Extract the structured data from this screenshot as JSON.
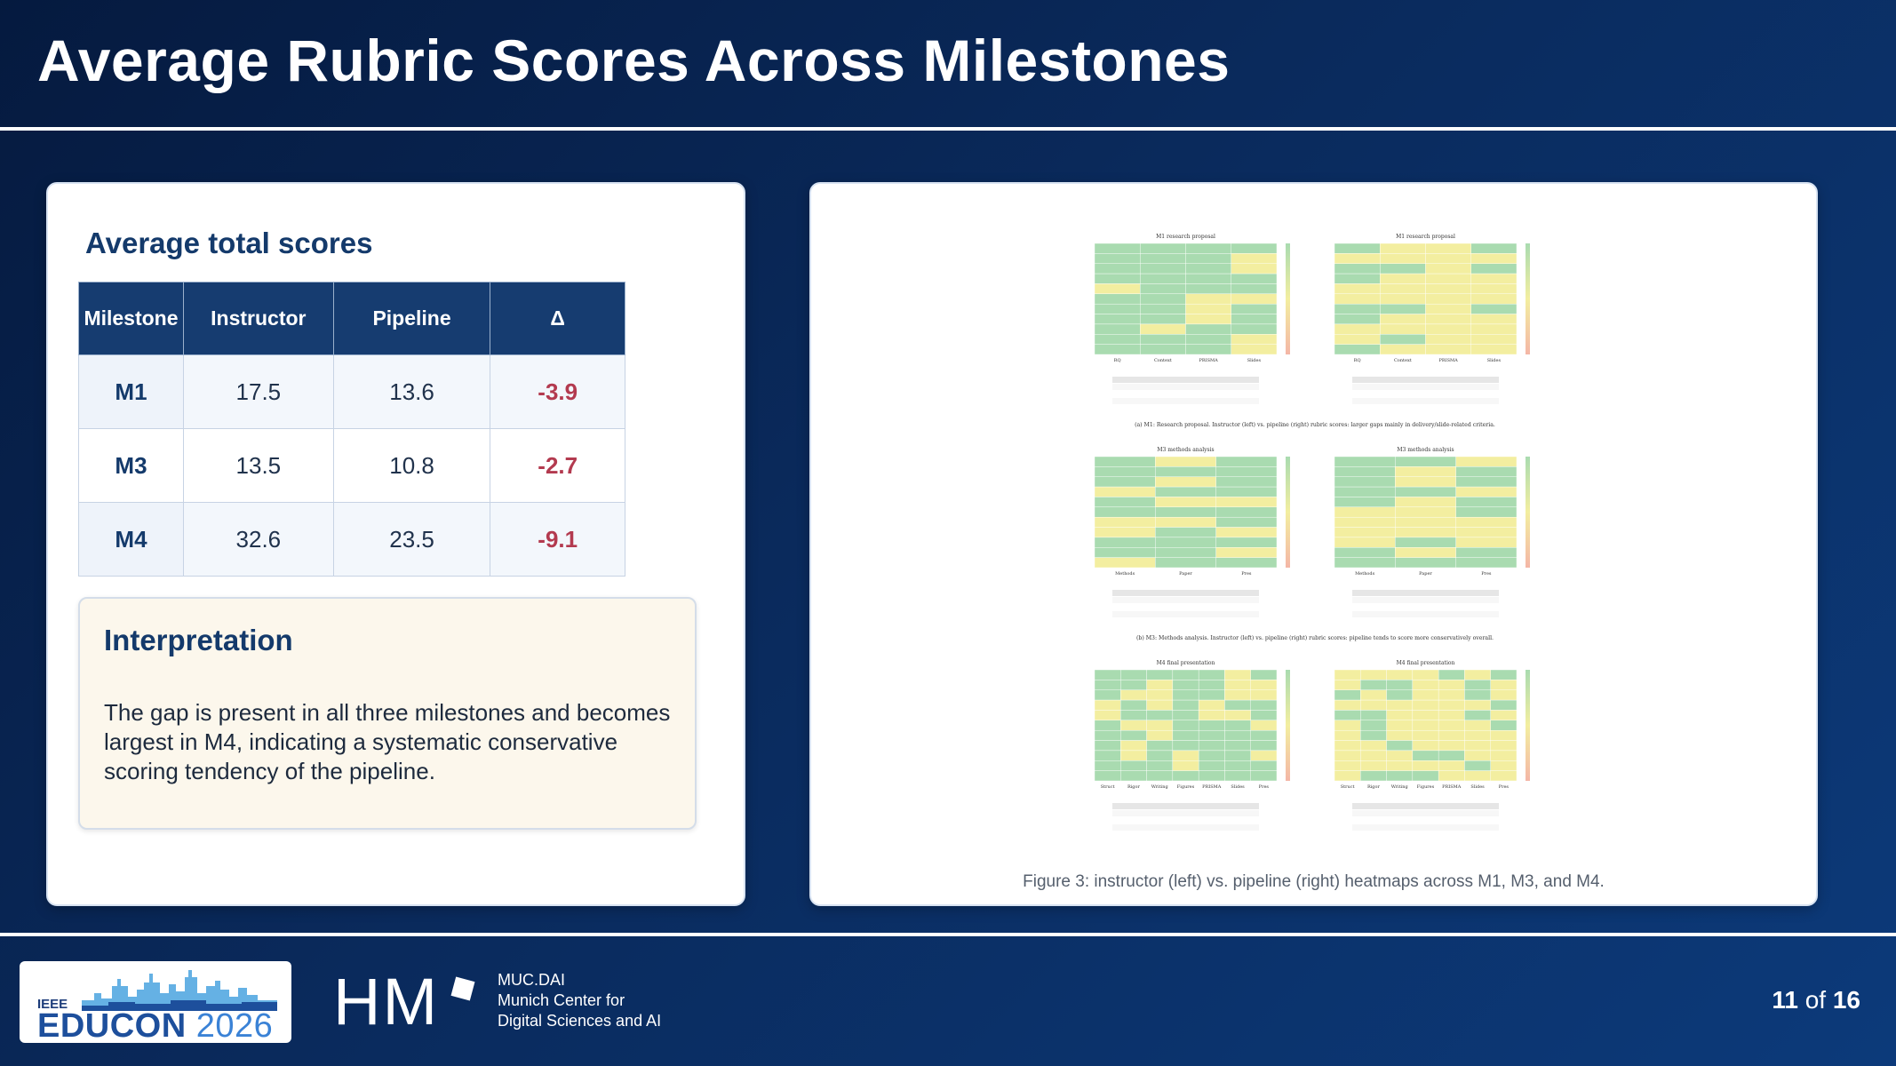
{
  "slide": {
    "title": "Average Rubric Scores Across Milestones",
    "page_current": "11",
    "page_of": "of",
    "page_total": "16"
  },
  "scores": {
    "section_title": "Average total scores",
    "headers": [
      "Milestone",
      "Instructor",
      "Pipeline",
      "Δ"
    ],
    "rows": [
      {
        "milestone": "M1",
        "instructor": "17.5",
        "pipeline": "13.6",
        "delta": "-3.9"
      },
      {
        "milestone": "M3",
        "instructor": "13.5",
        "pipeline": "10.8",
        "delta": "-2.7"
      },
      {
        "milestone": "M4",
        "instructor": "32.6",
        "pipeline": "23.5",
        "delta": "-9.1"
      }
    ]
  },
  "interpretation": {
    "title": "Interpretation",
    "text": "The gap is present in all three milestones and becomes largest in M4, indicating a systematic conservative scoring tendency of the pipeline."
  },
  "figure": {
    "caption": "Figure 3: instructor (left) vs. pipeline (right) heatmaps across M1, M3, and M4.",
    "panels": [
      {
        "left_title": "M1 research proposal",
        "right_title": "M1 research proposal",
        "columns": [
          "RQ",
          "Context",
          "PRISMA",
          "Slides"
        ],
        "subcaption": "(a) M1: Research proposal. Instructor (left) vs. pipeline (right) rubric scores: larger gaps mainly in delivery/slide-related criteria."
      },
      {
        "left_title": "M3 methods analysis",
        "right_title": "M3 methods analysis",
        "columns": [
          "Methods",
          "Paper",
          "Pres"
        ],
        "subcaption": "(b) M3: Methods analysis. Instructor (left) vs. pipeline (right) rubric scores: pipeline tends to score more conservatively overall."
      },
      {
        "left_title": "M4 final presentation",
        "right_title": "M4 final presentation",
        "columns": [
          "Struct",
          "Rigor",
          "Writing",
          "Figures",
          "PRISMA",
          "Slides",
          "Pres"
        ],
        "subcaption": ""
      }
    ],
    "colors": {
      "high": "#a9dbb0",
      "mid": "#f3eea0",
      "low": "#f4b6a6"
    }
  },
  "footer": {
    "educon_ieee": "IEEE",
    "educon_name": "EDUCON",
    "educon_year": "2026",
    "hm": "HM",
    "muc_lines": [
      "MUC.DAI",
      "Munich Center for",
      "Digital Sciences and AI"
    ]
  }
}
